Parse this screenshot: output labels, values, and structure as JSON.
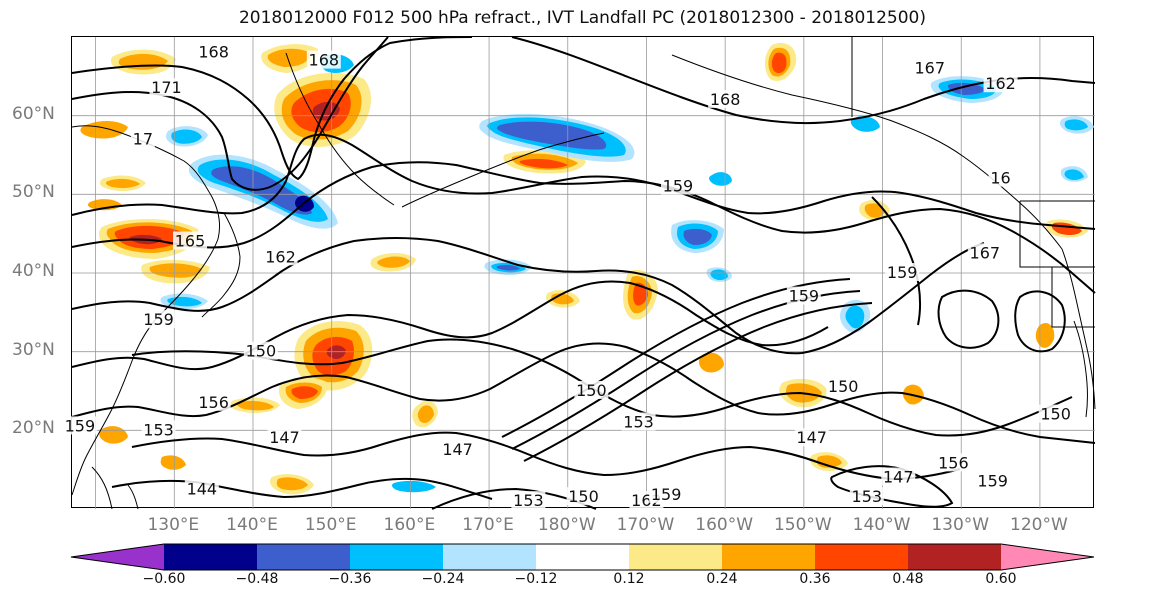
{
  "title": "2018012000 F012 500 hPa refract., IVT Landfall PC (2018012300 - 2018012500)",
  "lat_labels": [
    {
      "text": "60°N",
      "lat": 60
    },
    {
      "text": "50°N",
      "lat": 50
    },
    {
      "text": "40°N",
      "lat": 40
    },
    {
      "text": "30°N",
      "lat": 30
    },
    {
      "text": "20°N",
      "lat": 20
    }
  ],
  "lon_labels": [
    "130°E",
    "140°E",
    "150°E",
    "160°E",
    "170°E",
    "180°W",
    "170°W",
    "160°W",
    "150°W",
    "140°W",
    "130°W",
    "120°W"
  ],
  "contour_labels": [
    {
      "text": "168",
      "lon": 135,
      "lat": 68
    },
    {
      "text": "171",
      "lon": 129,
      "lat": 63.5
    },
    {
      "text": "168",
      "lon": 149,
      "lat": 67
    },
    {
      "text": "17",
      "lon": 126,
      "lat": 57
    },
    {
      "text": "168",
      "lon": 200,
      "lat": 62
    },
    {
      "text": "167",
      "lon": 226,
      "lat": 66
    },
    {
      "text": "162",
      "lon": 235,
      "lat": 64
    },
    {
      "text": "159",
      "lon": 194,
      "lat": 51
    },
    {
      "text": "16",
      "lon": 235,
      "lat": 52
    },
    {
      "text": "165",
      "lon": 132,
      "lat": 44
    },
    {
      "text": "162",
      "lon": 143.5,
      "lat": 42
    },
    {
      "text": "167",
      "lon": 233,
      "lat": 42.5
    },
    {
      "text": "159",
      "lon": 222.5,
      "lat": 40
    },
    {
      "text": "159",
      "lon": 210,
      "lat": 37
    },
    {
      "text": "159",
      "lon": 128,
      "lat": 34
    },
    {
      "text": "150",
      "lon": 141,
      "lat": 30
    },
    {
      "text": "156",
      "lon": 135,
      "lat": 23.5
    },
    {
      "text": "150",
      "lon": 183,
      "lat": 25
    },
    {
      "text": "150",
      "lon": 215,
      "lat": 25.5
    },
    {
      "text": "150",
      "lon": 242,
      "lat": 22
    },
    {
      "text": "159",
      "lon": 118,
      "lat": 20.5
    },
    {
      "text": "153",
      "lon": 128,
      "lat": 20
    },
    {
      "text": "147",
      "lon": 144,
      "lat": 19
    },
    {
      "text": "147",
      "lon": 166,
      "lat": 17.5
    },
    {
      "text": "153",
      "lon": 189,
      "lat": 21
    },
    {
      "text": "147",
      "lon": 211,
      "lat": 19
    },
    {
      "text": "147",
      "lon": 222,
      "lat": 14
    },
    {
      "text": "156",
      "lon": 229,
      "lat": 15.8
    },
    {
      "text": "159",
      "lon": 234,
      "lat": 13.5
    },
    {
      "text": "153",
      "lon": 218,
      "lat": 11.5
    },
    {
      "text": "144",
      "lon": 133.5,
      "lat": 12.5
    },
    {
      "text": "153",
      "lon": 175,
      "lat": 11
    },
    {
      "text": "150",
      "lon": 182,
      "lat": 11.5
    },
    {
      "text": "162",
      "lon": 190,
      "lat": 11
    },
    {
      "text": "159",
      "lon": 192.5,
      "lat": 11.8
    }
  ],
  "colorbar": {
    "colors": [
      "#9932cc",
      "#00008b",
      "#3c5fcd",
      "#00bfff",
      "#b2e4ff",
      "#ffffff",
      "#fce988",
      "#ffa500",
      "#ff4500",
      "#b22222",
      "#ff88b4"
    ],
    "labels": [
      "−0.60",
      "−0.48",
      "−0.36",
      "−0.24",
      "−0.12",
      "0.12",
      "0.24",
      "0.36",
      "0.48",
      "0.60"
    ]
  }
}
